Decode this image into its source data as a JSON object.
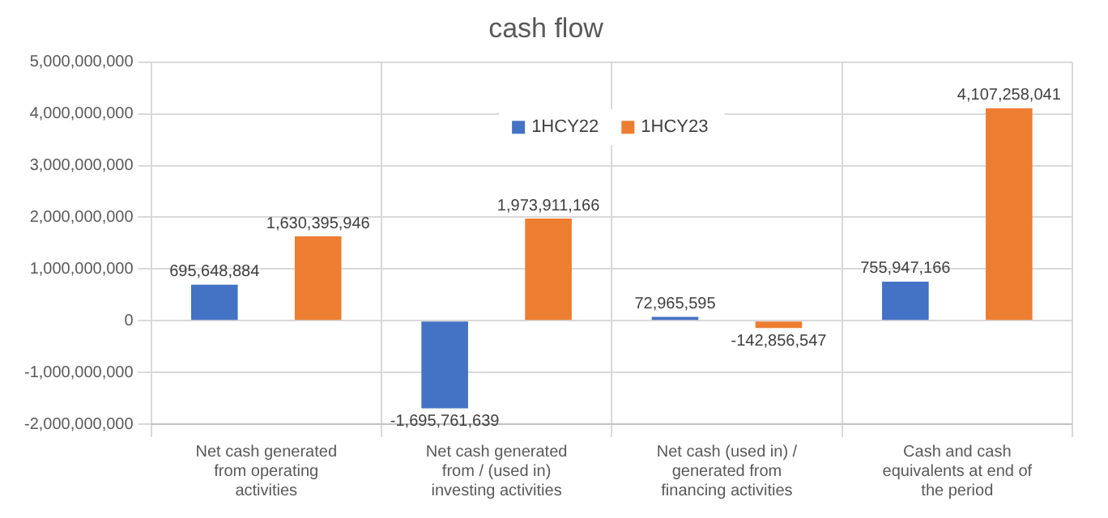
{
  "chart_data": {
    "type": "bar",
    "title": "cash flow",
    "categories": [
      "Net cash generated from operating activities",
      "Net cash generated from / (used in) investing activities",
      "Net cash (used in) / generated from financing activities",
      "Cash and cash equivalents at end of the period"
    ],
    "series": [
      {
        "name": "1HCY22",
        "color": "#4472c4",
        "values": [
          695648884,
          -1695761639,
          72965595,
          755947166
        ],
        "value_labels": [
          "695,648,884",
          "-1,695,761,639",
          "72,965,595",
          "755,947,166"
        ]
      },
      {
        "name": "1HCY23",
        "color": "#ed7d31",
        "values": [
          1630395946,
          1973911166,
          -142856547,
          4107258041
        ],
        "value_labels": [
          "1,630,395,946",
          "1,973,911,166",
          "-142,856,547",
          "4,107,258,041"
        ]
      }
    ],
    "ylim": [
      -2000000000,
      5000000000
    ],
    "yticks": [
      {
        "value": -2000000000,
        "label": "-2,000,000,000"
      },
      {
        "value": -1000000000,
        "label": "-1,000,000,000"
      },
      0,
      {
        "value": 1000000000,
        "label": "1,000,000,000"
      },
      {
        "value": 2000000000,
        "label": "2,000,000,000"
      },
      {
        "value": 3000000000,
        "label": "3,000,000,000"
      },
      {
        "value": 4000000000,
        "label": "4,000,000,000"
      },
      {
        "value": 5000000000,
        "label": "5,000,000,000"
      }
    ],
    "grid": true,
    "legend": "top"
  }
}
